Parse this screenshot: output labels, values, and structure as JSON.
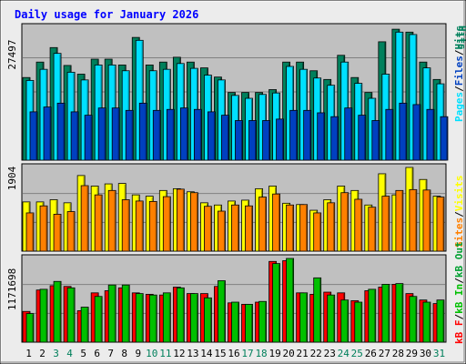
{
  "title": "Daily usage for January 2026",
  "colors": {
    "background": "#ececec",
    "panel": "#c0c0c0",
    "border": "#000000",
    "title": "#0000ff",
    "hits": "#00805c",
    "files": "#00e0ff",
    "pages": "#0040c0",
    "visits": "#ffff00",
    "sites": "#ff8000",
    "kbf": "#ff0000",
    "kbin": "#00c000",
    "kbout": "#00a030",
    "weekend": "#00805c"
  },
  "chart_data": [
    {
      "type": "bar",
      "panel": "top",
      "ymax_label": "27497",
      "ylim": [
        0,
        27497
      ],
      "categories": [
        "1",
        "2",
        "3",
        "4",
        "5",
        "6",
        "7",
        "8",
        "9",
        "10",
        "11",
        "12",
        "13",
        "14",
        "15",
        "16",
        "17",
        "18",
        "19",
        "20",
        "21",
        "22",
        "23",
        "24",
        "25",
        "26",
        "27",
        "28",
        "29",
        "30",
        "31"
      ],
      "legend": [
        "Hits",
        "/",
        "Files",
        "/",
        "Pages"
      ],
      "series": [
        {
          "name": "Hits",
          "values": [
            17100,
            20300,
            23300,
            19600,
            17800,
            20900,
            20900,
            19700,
            25400,
            19700,
            20300,
            21300,
            20300,
            19100,
            17200,
            14000,
            14000,
            14000,
            14600,
            20300,
            20300,
            18500,
            16700,
            21700,
            17100,
            14000,
            24500,
            27100,
            26500,
            20300,
            16700
          ]
        },
        {
          "name": "Files",
          "values": [
            16500,
            18800,
            22100,
            18200,
            16600,
            19700,
            19700,
            18500,
            24800,
            18500,
            18800,
            20000,
            19000,
            17600,
            16600,
            13400,
            12800,
            13600,
            13900,
            19400,
            18800,
            17000,
            15500,
            20300,
            15900,
            12800,
            17800,
            26500,
            26000,
            19100,
            15800
          ]
        },
        {
          "name": "Pages",
          "values": [
            10000,
            11000,
            11800,
            10000,
            9300,
            10800,
            10800,
            10300,
            11800,
            10300,
            10500,
            10800,
            10500,
            10000,
            9300,
            8200,
            8200,
            8200,
            8500,
            10300,
            10300,
            9800,
            9000,
            10800,
            9300,
            8200,
            10500,
            11800,
            11500,
            10500,
            9000
          ]
        }
      ]
    },
    {
      "type": "bar",
      "panel": "middle",
      "ymax_label": "1904",
      "ylim": [
        0,
        1904
      ],
      "categories": [
        "1",
        "2",
        "3",
        "4",
        "5",
        "6",
        "7",
        "8",
        "9",
        "10",
        "11",
        "12",
        "13",
        "14",
        "15",
        "16",
        "17",
        "18",
        "19",
        "20",
        "21",
        "22",
        "23",
        "24",
        "25",
        "26",
        "27",
        "28",
        "29",
        "30",
        "31"
      ],
      "legend": [
        "Visits",
        "/",
        "Sites"
      ],
      "series": [
        {
          "name": "Visits",
          "values": [
            1120,
            1120,
            1170,
            1100,
            1720,
            1480,
            1530,
            1540,
            1280,
            1250,
            1380,
            1420,
            1350,
            1100,
            1050,
            1140,
            1160,
            1420,
            1480,
            1090,
            1060,
            930,
            1170,
            1480,
            1380,
            1050,
            1760,
            1280,
            1904,
            1630,
            1250
          ]
        },
        {
          "name": "Sites",
          "values": [
            870,
            1030,
            840,
            900,
            1490,
            1280,
            1380,
            1170,
            1140,
            1130,
            1240,
            1410,
            1330,
            1020,
            910,
            1050,
            1030,
            1230,
            1300,
            1050,
            1060,
            870,
            1100,
            1330,
            1180,
            1000,
            1250,
            1380,
            1400,
            1390,
            1230
          ]
        }
      ]
    },
    {
      "type": "bar",
      "panel": "bottom",
      "ymax_label": "1171698",
      "ylim": [
        0,
        1171698
      ],
      "categories": [
        "1",
        "2",
        "3",
        "4",
        "5",
        "6",
        "7",
        "8",
        "9",
        "10",
        "11",
        "12",
        "13",
        "14",
        "15",
        "16",
        "17",
        "18",
        "19",
        "20",
        "21",
        "22",
        "23",
        "24",
        "25",
        "26",
        "27",
        "28",
        "29",
        "30",
        "31"
      ],
      "legend": [
        "Visits",
        "/",
        "Sites"
      ],
      "legend_kb": [
        "KB F",
        "/",
        "KB In",
        "/",
        "KB Out"
      ],
      "series": [
        {
          "name": "KB F",
          "values": [
            430000,
            730000,
            790000,
            780000,
            440000,
            690000,
            720000,
            760000,
            690000,
            670000,
            660000,
            770000,
            680000,
            680000,
            780000,
            550000,
            530000,
            560000,
            1130000,
            1140000,
            690000,
            670000,
            700000,
            690000,
            580000,
            720000,
            770000,
            810000,
            680000,
            590000,
            540000
          ]
        },
        {
          "name": "KB In",
          "values": [
            400000,
            740000,
            850000,
            760000,
            490000,
            640000,
            800000,
            800000,
            680000,
            660000,
            690000,
            760000,
            680000,
            620000,
            860000,
            560000,
            530000,
            570000,
            1100000,
            1171698,
            690000,
            900000,
            660000,
            590000,
            560000,
            740000,
            810000,
            820000,
            640000,
            560000,
            590000
          ]
        }
      ]
    }
  ],
  "days": [
    {
      "label": "1",
      "weekend": false
    },
    {
      "label": "2",
      "weekend": false
    },
    {
      "label": "3",
      "weekend": true
    },
    {
      "label": "4",
      "weekend": true
    },
    {
      "label": "5",
      "weekend": false
    },
    {
      "label": "6",
      "weekend": false
    },
    {
      "label": "7",
      "weekend": false
    },
    {
      "label": "8",
      "weekend": false
    },
    {
      "label": "9",
      "weekend": false
    },
    {
      "label": "10",
      "weekend": true
    },
    {
      "label": "11",
      "weekend": true
    },
    {
      "label": "12",
      "weekend": false
    },
    {
      "label": "13",
      "weekend": false
    },
    {
      "label": "14",
      "weekend": false
    },
    {
      "label": "15",
      "weekend": false
    },
    {
      "label": "16",
      "weekend": false
    },
    {
      "label": "17",
      "weekend": true
    },
    {
      "label": "18",
      "weekend": true
    },
    {
      "label": "19",
      "weekend": false
    },
    {
      "label": "20",
      "weekend": false
    },
    {
      "label": "21",
      "weekend": false
    },
    {
      "label": "22",
      "weekend": false
    },
    {
      "label": "23",
      "weekend": false
    },
    {
      "label": "24",
      "weekend": true
    },
    {
      "label": "25",
      "weekend": true
    },
    {
      "label": "26",
      "weekend": false
    },
    {
      "label": "27",
      "weekend": false
    },
    {
      "label": "28",
      "weekend": false
    },
    {
      "label": "29",
      "weekend": false
    },
    {
      "label": "30",
      "weekend": false
    },
    {
      "label": "31",
      "weekend": true
    }
  ],
  "legend_top": {
    "pages": "Pages",
    "sep1": "/",
    "files": "Files",
    "sep2": "/",
    "hits": "Hits"
  },
  "legend_middle": {
    "sites": "Sites",
    "sep": "/",
    "visits": "Visits"
  },
  "legend_bottom": {
    "kbf": "kB F",
    "sep1": "/",
    "kbin": "kB In",
    "sep2": "/",
    "kbout": "kB Out"
  }
}
